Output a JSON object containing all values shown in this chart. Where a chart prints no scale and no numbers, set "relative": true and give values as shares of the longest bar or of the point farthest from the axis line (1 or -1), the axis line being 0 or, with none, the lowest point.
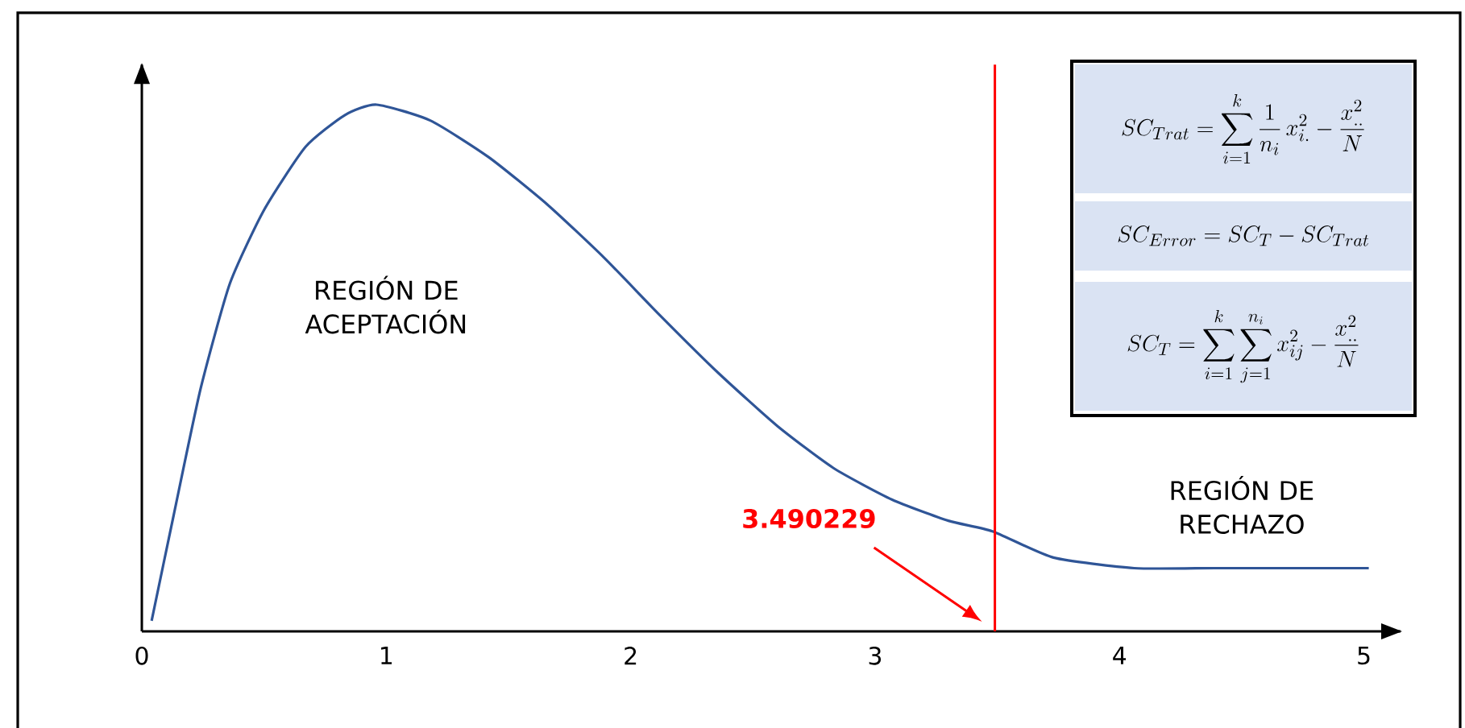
{
  "chart_data": {
    "type": "line",
    "relative": true,
    "color": "#2f5597",
    "marker": "none",
    "line_style": "solid",
    "x": [
      0.04,
      0.13,
      0.24,
      0.36,
      0.5,
      0.67,
      0.83,
      0.96,
      1.18,
      1.42,
      1.66,
      1.89,
      2.12,
      2.36,
      2.6,
      2.83,
      3.07,
      3.3,
      3.48,
      3.73,
      4.06,
      4.39,
      4.72,
      5.02
    ],
    "values": [
      0.02,
      0.22,
      0.46,
      0.66,
      0.8,
      0.92,
      0.98,
      1,
      0.97,
      0.9,
      0.81,
      0.71,
      0.6,
      0.49,
      0.39,
      0.31,
      0.25,
      0.21,
      0.19,
      0.14,
      0.12,
      0.12,
      0.12,
      0.12
    ],
    "xlim": [
      0,
      5.15
    ],
    "xticks": [
      0,
      1,
      2,
      3,
      4,
      5
    ],
    "tick_labels": "x",
    "ref_lines": [
      {
        "axis": "x",
        "value": 3.490229,
        "label": "3.490229",
        "color": "#ff0000"
      }
    ],
    "annotations": [
      "REGIÓN DE ACEPTACIÓN",
      "REGIÓN DE RECHAZO",
      "SC_{Trat}=\\sum_{i=1}^{k}\\frac{1}{n_i}\\,x_{i.}^{2}-\\frac{x_{..}^{2}}{N}",
      "SC_{Error}=SC_{T}-SC_{Trat}",
      "SC_{T}=\\sum_{i=1}^{k}\\sum_{j=1}^{n_i}x_{ij}^{2}-\\frac{x_{..}^{2}}{N}"
    ]
  }
}
